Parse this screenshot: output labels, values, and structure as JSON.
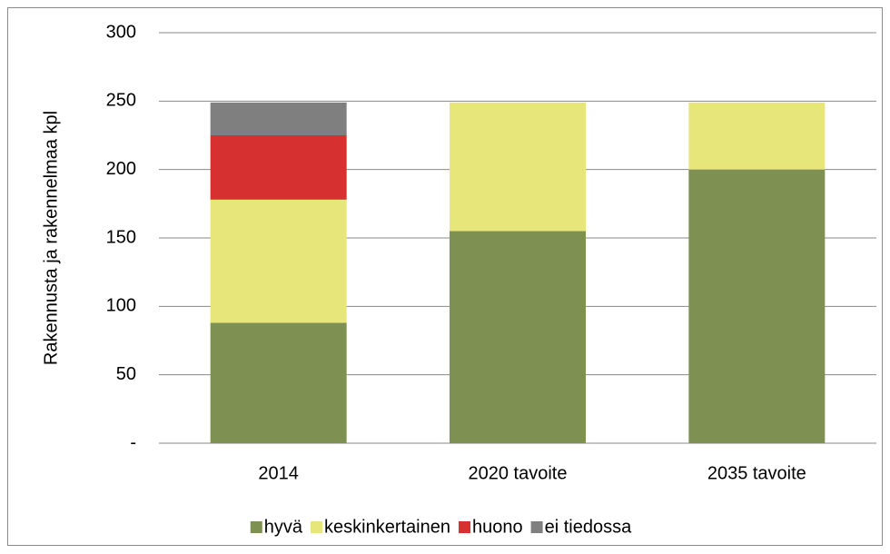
{
  "chart_data": {
    "type": "stacked_bar",
    "y_label": "Rakennusta ja rakennelmaa kpl",
    "categories": [
      "2014",
      "2020 tavoite",
      "2035 tavoite"
    ],
    "series": [
      {
        "name": "hyvä",
        "color": "#7f9152",
        "values": [
          88,
          155,
          200
        ]
      },
      {
        "name": "keskinkertainen",
        "color": "#e6e67a",
        "values": [
          90,
          94,
          49
        ]
      },
      {
        "name": "huono",
        "color": "#d63030",
        "values": [
          47,
          null,
          null
        ]
      },
      {
        "name": "ei tiedossa",
        "color": "#7f7f80",
        "values": [
          24,
          null,
          null
        ]
      }
    ],
    "ylim": [
      0,
      300
    ],
    "yticks": [
      {
        "value": 0,
        "label": "-"
      },
      50,
      100,
      150,
      200,
      250,
      300
    ],
    "grid": true,
    "legend": "bottom"
  }
}
